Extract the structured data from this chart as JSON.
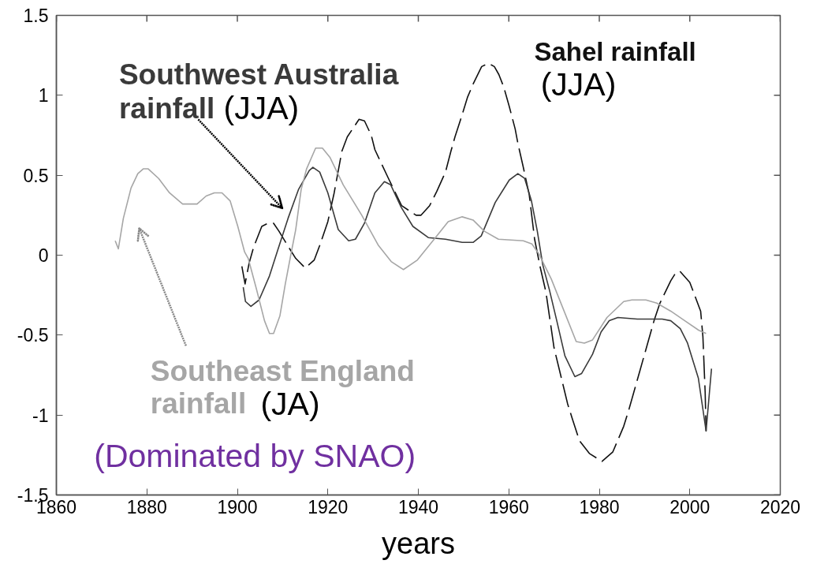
{
  "chart_data": {
    "type": "line",
    "xlabel": "years",
    "xlim": [
      1860,
      2020
    ],
    "ylim": [
      -1.5,
      1.5
    ],
    "xticks": [
      1860,
      1880,
      1900,
      1920,
      1940,
      1960,
      1980,
      2000,
      2020
    ],
    "yticks": [
      -1.5,
      -1,
      -0.5,
      0,
      0.5,
      1,
      1.5
    ],
    "series": [
      {
        "name": "Sahel rainfall (JJA)",
        "color": "#111111",
        "line_style": "dashed",
        "x": [
          1901.0,
          1901.7,
          1902.6,
          1903.6,
          1905.4,
          1906.8,
          1908.0,
          1909.2,
          1910.9,
          1912.9,
          1915.0,
          1917.0,
          1918.2,
          1920.0,
          1921.4,
          1923.1,
          1924.3,
          1926.9,
          1928.1,
          1929.6,
          1930.4,
          1933.4,
          1936.3,
          1939.5,
          1940.6,
          1942.5,
          1944.1,
          1946.0,
          1947.2,
          1948.1,
          1949.7,
          1950.9,
          1952.1,
          1954.0,
          1955.5,
          1956.8,
          1957.8,
          1958.9,
          1960.1,
          1961.4,
          1962.0,
          1963.2,
          1964.5,
          1965.7,
          1966.9,
          1968.2,
          1970.0,
          1973.0,
          1974.0,
          1975.6,
          1977.8,
          1980.6,
          1983.0,
          1985.4,
          1986.6,
          1989.0,
          1992.1,
          1993.4,
          1995.8,
          1996.9,
          1997.8,
          2000.0,
          2002.4,
          2002.9,
          2003.4,
          2003.6
        ],
        "values": [
          -0.07,
          -0.18,
          -0.05,
          0.05,
          0.18,
          0.2,
          0.2,
          0.15,
          0.07,
          -0.02,
          -0.08,
          -0.03,
          0.06,
          0.21,
          0.39,
          0.65,
          0.74,
          0.85,
          0.84,
          0.75,
          0.66,
          0.48,
          0.31,
          0.25,
          0.25,
          0.31,
          0.4,
          0.52,
          0.65,
          0.74,
          0.88,
          0.99,
          1.07,
          1.18,
          1.2,
          1.18,
          1.13,
          1.05,
          0.93,
          0.79,
          0.7,
          0.55,
          0.38,
          0.1,
          -0.07,
          -0.23,
          -0.58,
          -0.93,
          -1.02,
          -1.16,
          -1.24,
          -1.29,
          -1.23,
          -1.07,
          -0.96,
          -0.72,
          -0.41,
          -0.3,
          -0.16,
          -0.11,
          -0.1,
          -0.17,
          -0.35,
          -0.51,
          -0.86,
          -1.1
        ]
      },
      {
        "name": "Southwest Australia rainfall (JJA)",
        "color": "#3a3a3a",
        "line_style": "solid",
        "x": [
          1901.3,
          1901.8,
          1903.0,
          1904.8,
          1907.1,
          1908.9,
          1911.2,
          1913.5,
          1915.9,
          1916.7,
          1918.2,
          1920.0,
          1922.3,
          1924.6,
          1926.1,
          1928.1,
          1930.4,
          1932.5,
          1933.9,
          1936.2,
          1938.8,
          1942.2,
          1946.0,
          1949.7,
          1952.1,
          1953.9,
          1957.0,
          1960.1,
          1962.0,
          1963.5,
          1965.0,
          1966.3,
          1967.5,
          1969.0,
          1970.6,
          1972.4,
          1974.6,
          1976.1,
          1978.5,
          1980.4,
          1982.2,
          1984.1,
          1988.4,
          1990.2,
          1993.9,
          1995.8,
          1997.9,
          1999.5,
          2001.9,
          2003.6,
          2004.8
        ],
        "values": [
          -0.2,
          -0.29,
          -0.32,
          -0.28,
          -0.13,
          0.03,
          0.23,
          0.41,
          0.53,
          0.55,
          0.52,
          0.39,
          0.16,
          0.09,
          0.1,
          0.2,
          0.39,
          0.46,
          0.44,
          0.3,
          0.18,
          0.11,
          0.1,
          0.08,
          0.08,
          0.12,
          0.33,
          0.47,
          0.51,
          0.48,
          0.34,
          0.15,
          -0.06,
          -0.22,
          -0.41,
          -0.63,
          -0.76,
          -0.74,
          -0.62,
          -0.48,
          -0.41,
          -0.39,
          -0.4,
          -0.4,
          -0.4,
          -0.41,
          -0.46,
          -0.55,
          -0.77,
          -1.1,
          -0.71
        ]
      },
      {
        "name": "Southeast England rainfall (JA)",
        "color": "#a6a6a6",
        "line_style": "solid",
        "x": [
          1873.0,
          1873.7,
          1874.8,
          1876.5,
          1878.0,
          1879.2,
          1880.3,
          1882.6,
          1885.0,
          1887.9,
          1891.1,
          1893.1,
          1894.9,
          1896.6,
          1898.4,
          1900.1,
          1901.6,
          1902.4,
          1904.2,
          1906.0,
          1907.1,
          1908.0,
          1909.4,
          1910.6,
          1911.8,
          1912.9,
          1914.1,
          1915.3,
          1917.3,
          1918.8,
          1920.5,
          1923.4,
          1927.5,
          1931.2,
          1934.0,
          1936.7,
          1939.8,
          1943.5,
          1946.6,
          1949.7,
          1952.1,
          1954.6,
          1957.7,
          1963.2,
          1965.1,
          1966.6,
          1969.4,
          1971.8,
          1974.9,
          1976.7,
          1978.5,
          1981.7,
          1985.4,
          1987.2,
          1990.3,
          1992.7,
          1995.8,
          1998.9,
          2002.0,
          2003.6
        ],
        "values": [
          0.09,
          0.04,
          0.23,
          0.42,
          0.51,
          0.54,
          0.54,
          0.48,
          0.39,
          0.32,
          0.32,
          0.37,
          0.39,
          0.39,
          0.34,
          0.18,
          0.02,
          -0.02,
          -0.21,
          -0.41,
          -0.49,
          -0.49,
          -0.38,
          -0.18,
          0.0,
          0.16,
          0.41,
          0.54,
          0.67,
          0.67,
          0.61,
          0.44,
          0.25,
          0.06,
          -0.04,
          -0.09,
          -0.03,
          0.1,
          0.21,
          0.24,
          0.22,
          0.15,
          0.1,
          0.09,
          0.07,
          0.01,
          -0.15,
          -0.32,
          -0.54,
          -0.55,
          -0.53,
          -0.39,
          -0.29,
          -0.28,
          -0.28,
          -0.3,
          -0.35,
          -0.41,
          -0.47,
          -0.49
        ]
      }
    ],
    "annotations": [
      "(Dominated by SNAO)"
    ]
  }
}
